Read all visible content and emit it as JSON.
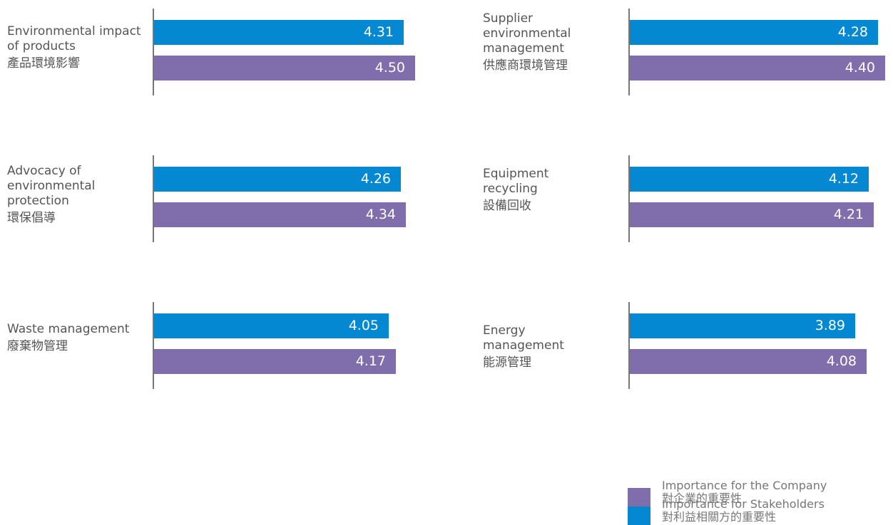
{
  "colors": {
    "stakeholders": "#0388d1",
    "company": "#806dab",
    "axis": "#777777"
  },
  "chart_data": {
    "type": "bar",
    "orientation": "horizontal",
    "xlim": [
      0,
      4.65
    ],
    "series": [
      {
        "name": "Importance for Stakeholders",
        "name_zh": "對利益相關方的重要性"
      },
      {
        "name": "Importance for the Company",
        "name_zh": "對企業的重要性"
      }
    ],
    "groups": [
      {
        "label_en": "Environmental impact of products",
        "label_zh": "產品環境影響",
        "values": [
          4.31,
          4.5
        ]
      },
      {
        "label_en": "Advocacy of environmental protection",
        "label_zh": "環保倡導",
        "values": [
          4.26,
          4.34
        ]
      },
      {
        "label_en": "Waste management",
        "label_zh": "廢棄物管理",
        "values": [
          4.05,
          4.17
        ]
      },
      {
        "label_en": "Supplier environmental management",
        "label_zh": "供應商環境管理",
        "values": [
          4.28,
          4.4
        ]
      },
      {
        "label_en": "Equipment recycling",
        "label_zh": "設備回收",
        "values": [
          4.12,
          4.21
        ]
      },
      {
        "label_en": "Energy management",
        "label_zh": "能源管理",
        "values": [
          3.89,
          4.08
        ]
      }
    ]
  },
  "legend": {
    "stakeholders_en": "Importance for Stakeholders",
    "stakeholders_zh": "對利益相關方的重要性",
    "company_en": "Importance for the Company",
    "company_zh": "對企業的重要性"
  }
}
